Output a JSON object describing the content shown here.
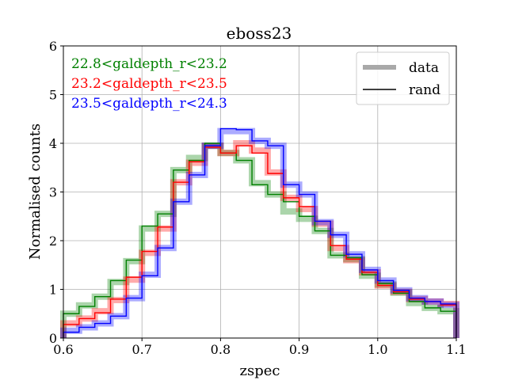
{
  "chart_data": {
    "type": "line",
    "style": "step-histogram",
    "title": "eboss23",
    "xlabel": "zspec",
    "ylabel": "Normalised counts",
    "xlim": [
      0.6,
      1.1
    ],
    "ylim": [
      0,
      6
    ],
    "xticks": [
      0.6,
      0.7,
      0.8,
      0.9,
      1.0,
      1.1
    ],
    "xtick_labels": [
      "0.6",
      "0.7",
      "0.8",
      "0.9",
      "1.0",
      "1.1"
    ],
    "yticks": [
      0,
      1,
      2,
      3,
      4,
      5,
      6
    ],
    "ytick_labels": [
      "0",
      "1",
      "2",
      "3",
      "4",
      "5",
      "6"
    ],
    "grid": true,
    "bin_edges": [
      0.6,
      0.62,
      0.64,
      0.66,
      0.68,
      0.7,
      0.72,
      0.74,
      0.76,
      0.78,
      0.8,
      0.82,
      0.84,
      0.86,
      0.88,
      0.9,
      0.92,
      0.94,
      0.96,
      0.98,
      1.0,
      1.02,
      1.04,
      1.06,
      1.08,
      1.1
    ],
    "series": [
      {
        "name": "22.8<galdepth_r<23.2",
        "color": "#008000",
        "data": [
          0.5,
          0.67,
          0.85,
          1.15,
          1.58,
          2.25,
          2.55,
          3.45,
          3.7,
          3.95,
          3.8,
          3.65,
          3.18,
          2.95,
          2.6,
          2.45,
          2.2,
          1.7,
          1.62,
          1.28,
          1.1,
          0.93,
          0.72,
          0.62,
          0.55
        ],
        "rand": [
          0.5,
          0.65,
          0.85,
          1.18,
          1.6,
          2.3,
          2.55,
          3.45,
          3.65,
          4.0,
          3.8,
          3.65,
          3.15,
          2.95,
          2.8,
          2.5,
          2.2,
          1.7,
          1.65,
          1.3,
          1.12,
          0.92,
          0.75,
          0.62,
          0.55
        ]
      },
      {
        "name": "23.2<galdepth_r<23.5",
        "color": "#ff0000",
        "data": [
          0.3,
          0.4,
          0.55,
          0.78,
          1.2,
          1.75,
          2.25,
          3.2,
          3.6,
          3.95,
          3.8,
          4.0,
          3.85,
          3.4,
          2.88,
          2.65,
          2.35,
          1.85,
          1.6,
          1.35,
          1.08,
          0.95,
          0.8,
          0.75,
          0.7
        ],
        "rand": [
          0.28,
          0.4,
          0.52,
          0.8,
          1.25,
          1.78,
          2.28,
          3.2,
          3.62,
          3.92,
          3.8,
          3.95,
          3.8,
          3.38,
          2.88,
          2.7,
          2.4,
          1.9,
          1.62,
          1.35,
          1.08,
          0.95,
          0.8,
          0.75,
          0.68
        ]
      },
      {
        "name": "23.5<galdepth_r<24.3",
        "color": "#0000ff",
        "data": [
          0.15,
          0.22,
          0.3,
          0.45,
          0.82,
          1.3,
          1.85,
          2.8,
          3.35,
          3.95,
          4.25,
          4.25,
          4.05,
          3.95,
          3.15,
          2.95,
          2.38,
          2.12,
          1.72,
          1.4,
          1.18,
          0.98,
          0.82,
          0.75,
          0.68
        ],
        "rand": [
          0.12,
          0.22,
          0.3,
          0.45,
          0.82,
          1.28,
          1.85,
          2.8,
          3.35,
          3.95,
          4.3,
          4.28,
          4.05,
          3.95,
          3.15,
          2.95,
          2.4,
          2.12,
          1.72,
          1.4,
          1.18,
          0.98,
          0.82,
          0.75,
          0.7
        ]
      }
    ],
    "legend_right": {
      "position": "top-right",
      "entries": [
        {
          "label": "data",
          "color": "#a9a9a9"
        },
        {
          "label": "rand",
          "color": "#000000"
        }
      ]
    },
    "legend_left_position": "top-left"
  }
}
